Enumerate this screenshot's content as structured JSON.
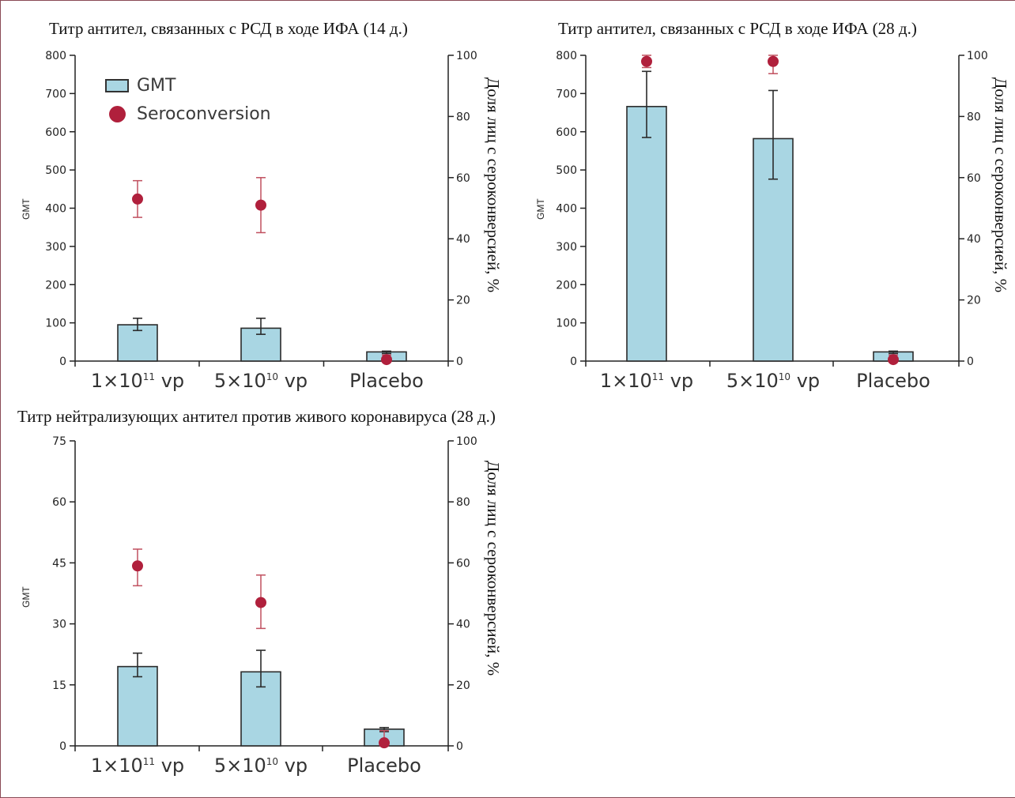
{
  "colors": {
    "bar_fill": "#a9d6e3",
    "bar_stroke": "#2b2b2b",
    "dot": "#b0203c",
    "dot_err": "#c0505f",
    "axis": "#222222",
    "frame": "#8a4a55"
  },
  "legend": {
    "gmt_label": "GMT",
    "sero_label": "Seroconversion"
  },
  "chart_data": [
    {
      "type": "bar",
      "title": "Титр антител, связанных с РСД в ходе ИФА (14 д.)",
      "ylabel": "GMT",
      "y2label": "Доля лиц с сероконверсией, %",
      "categories": [
        [
          "1×10",
          "11",
          " vp"
        ],
        [
          "5×10",
          "10",
          " vp"
        ],
        [
          "Placebo",
          "",
          ""
        ]
      ],
      "ylim": [
        0,
        800
      ],
      "yticks": [
        0,
        100,
        200,
        300,
        400,
        500,
        600,
        700,
        800
      ],
      "y2lim": [
        0,
        100
      ],
      "y2ticks": [
        0,
        20,
        40,
        60,
        80,
        100
      ],
      "legend_position": "top-left",
      "series": [
        {
          "name": "GMT",
          "axis": "left",
          "values": [
            95,
            86,
            24
          ],
          "err_low": [
            80,
            70,
            20
          ],
          "err_high": [
            112,
            112,
            26
          ]
        },
        {
          "name": "Seroconversion",
          "axis": "right",
          "values": [
            53,
            51,
            0.5
          ],
          "err_low": [
            47,
            42,
            0
          ],
          "err_high": [
            59,
            60,
            2
          ]
        }
      ]
    },
    {
      "type": "bar",
      "title": "Титр антител, связанных с РСД в ходе ИФА (28 д.)",
      "ylabel": "GMT",
      "y2label": "Доля лиц с сероконверсией, %",
      "categories": [
        [
          "1×10",
          "11",
          " vp"
        ],
        [
          "5×10",
          "10",
          " vp"
        ],
        [
          "Placebo",
          "",
          ""
        ]
      ],
      "ylim": [
        0,
        800
      ],
      "yticks": [
        0,
        100,
        200,
        300,
        400,
        500,
        600,
        700,
        800
      ],
      "y2lim": [
        0,
        100
      ],
      "y2ticks": [
        0,
        20,
        40,
        60,
        80,
        100
      ],
      "series": [
        {
          "name": "GMT",
          "axis": "left",
          "values": [
            666,
            582,
            24
          ],
          "err_low": [
            585,
            476,
            20
          ],
          "err_high": [
            758,
            708,
            26
          ]
        },
        {
          "name": "Seroconversion",
          "axis": "right",
          "values": [
            98,
            98,
            0.5
          ],
          "err_low": [
            96,
            94,
            0
          ],
          "err_high": [
            100,
            100,
            2
          ]
        }
      ]
    },
    {
      "type": "bar",
      "title": "Титр нейтрализующих антител против живого коронавируса (28 д.)",
      "ylabel": "GMT",
      "y2label": "Доля лиц с сероконверсией, %",
      "categories": [
        [
          "1×10",
          "11",
          " vp"
        ],
        [
          "5×10",
          "10",
          " vp"
        ],
        [
          "Placebo",
          "",
          ""
        ]
      ],
      "ylim": [
        0,
        75
      ],
      "yticks": [
        0,
        15,
        30,
        45,
        60,
        75
      ],
      "y2lim": [
        0,
        100
      ],
      "y2ticks": [
        0,
        20,
        40,
        60,
        80,
        100
      ],
      "series": [
        {
          "name": "GMT",
          "axis": "left",
          "values": [
            19.5,
            18.2,
            4.1
          ],
          "err_low": [
            17,
            14.5,
            3.5
          ],
          "err_high": [
            22.8,
            23.5,
            4.5
          ]
        },
        {
          "name": "Seroconversion",
          "axis": "right",
          "values": [
            59,
            47,
            1
          ],
          "err_low": [
            52.5,
            38.5,
            0
          ],
          "err_high": [
            64.5,
            56,
            5
          ]
        }
      ]
    }
  ]
}
